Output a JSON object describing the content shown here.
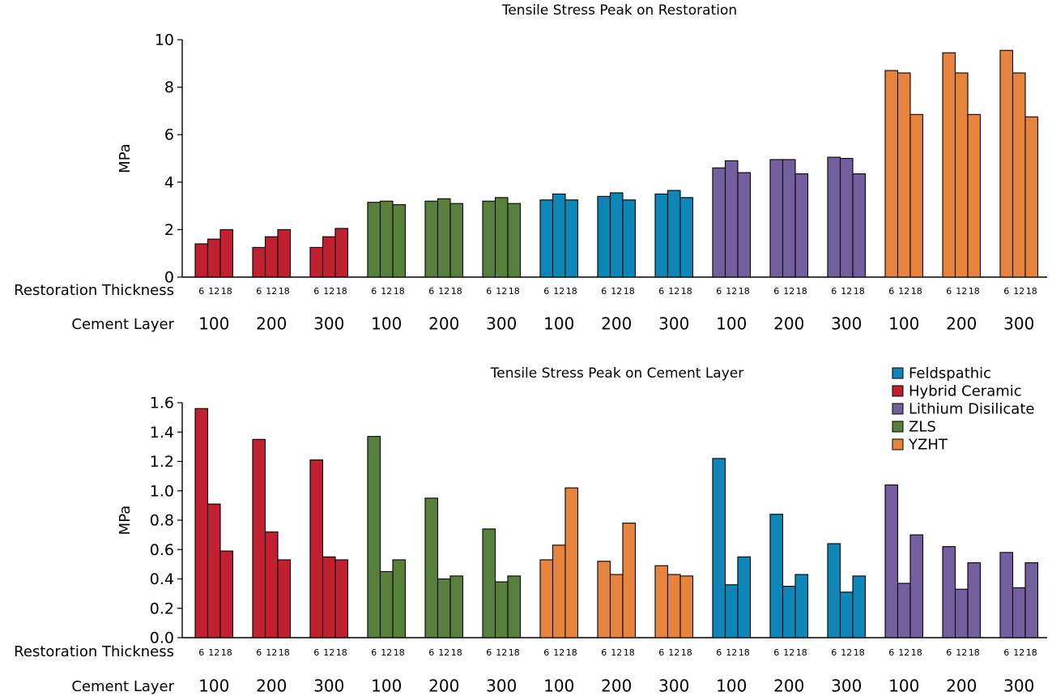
{
  "colors": {
    "Feldspathic": "#0e86b8",
    "Hybrid Ceramic": "#c0202f",
    "Lithium Disilicate": "#735f9e",
    "ZLS": "#58803c",
    "YZHT": "#e6843d"
  },
  "legend": [
    "Feldspathic",
    "Hybrid Ceramic",
    "Lithium Disilicate",
    "ZLS",
    "YZHT"
  ],
  "chart_data": [
    {
      "type": "bar",
      "title": "Tensile Stress Peak on Restoration",
      "ylabel": "MPa",
      "ylim": [
        0,
        10
      ],
      "yticks": [
        "0",
        "2",
        "4",
        "6",
        "8",
        "10"
      ],
      "row_labels": [
        "Restoration Thickness",
        "Cement Layer"
      ],
      "thickness_labels": [
        "6",
        "12",
        "18"
      ],
      "groups": [
        {
          "material": "Hybrid Ceramic",
          "cement": "100",
          "values": [
            1.4,
            1.6,
            2.0
          ]
        },
        {
          "material": "Hybrid Ceramic",
          "cement": "200",
          "values": [
            1.25,
            1.7,
            2.0
          ]
        },
        {
          "material": "Hybrid Ceramic",
          "cement": "300",
          "values": [
            1.25,
            1.7,
            2.05
          ]
        },
        {
          "material": "ZLS",
          "cement": "100",
          "values": [
            3.15,
            3.2,
            3.05
          ]
        },
        {
          "material": "ZLS",
          "cement": "200",
          "values": [
            3.2,
            3.3,
            3.1
          ]
        },
        {
          "material": "ZLS",
          "cement": "300",
          "values": [
            3.2,
            3.35,
            3.1
          ]
        },
        {
          "material": "Feldspathic",
          "cement": "100",
          "values": [
            3.25,
            3.5,
            3.25
          ]
        },
        {
          "material": "Feldspathic",
          "cement": "200",
          "values": [
            3.4,
            3.55,
            3.25
          ]
        },
        {
          "material": "Feldspathic",
          "cement": "300",
          "values": [
            3.5,
            3.65,
            3.35
          ]
        },
        {
          "material": "Lithium Disilicate",
          "cement": "100",
          "values": [
            4.6,
            4.9,
            4.4
          ]
        },
        {
          "material": "Lithium Disilicate",
          "cement": "200",
          "values": [
            4.95,
            4.95,
            4.35
          ]
        },
        {
          "material": "Lithium Disilicate",
          "cement": "300",
          "values": [
            5.05,
            5.0,
            4.35
          ]
        },
        {
          "material": "YZHT",
          "cement": "100",
          "values": [
            8.7,
            8.6,
            6.85
          ]
        },
        {
          "material": "YZHT",
          "cement": "200",
          "values": [
            9.45,
            8.6,
            6.85
          ]
        },
        {
          "material": "YZHT",
          "cement": "300",
          "values": [
            9.55,
            8.6,
            6.75
          ]
        }
      ]
    },
    {
      "type": "bar",
      "title": "Tensile Stress Peak on Cement Layer",
      "ylabel": "MPa",
      "ylim": [
        0,
        1.6
      ],
      "yticks": [
        "0.0",
        "0.2",
        "0.4",
        "0.6",
        "0.8",
        "1.0",
        "1.2",
        "1.4",
        "1.6"
      ],
      "row_labels": [
        "Restoration Thickness",
        "Cement Layer"
      ],
      "thickness_labels": [
        "6",
        "12",
        "18"
      ],
      "legend_position": "top-right",
      "groups": [
        {
          "material": "Hybrid Ceramic",
          "cement": "100",
          "values": [
            1.56,
            0.91,
            0.59
          ]
        },
        {
          "material": "Hybrid Ceramic",
          "cement": "200",
          "values": [
            1.35,
            0.72,
            0.53
          ]
        },
        {
          "material": "Hybrid Ceramic",
          "cement": "300",
          "values": [
            1.21,
            0.55,
            0.53
          ]
        },
        {
          "material": "ZLS",
          "cement": "100",
          "values": [
            1.37,
            0.45,
            0.53
          ]
        },
        {
          "material": "ZLS",
          "cement": "200",
          "values": [
            0.95,
            0.4,
            0.42
          ]
        },
        {
          "material": "ZLS",
          "cement": "300",
          "values": [
            0.74,
            0.38,
            0.42
          ]
        },
        {
          "material": "YZHT",
          "cement": "100",
          "values": [
            0.53,
            0.63,
            1.02
          ]
        },
        {
          "material": "YZHT",
          "cement": "200",
          "values": [
            0.52,
            0.43,
            0.78
          ]
        },
        {
          "material": "YZHT",
          "cement": "300",
          "values": [
            0.49,
            0.43,
            0.42
          ]
        },
        {
          "material": "Feldspathic",
          "cement": "100",
          "values": [
            1.22,
            0.36,
            0.55
          ]
        },
        {
          "material": "Feldspathic",
          "cement": "200",
          "values": [
            0.84,
            0.35,
            0.43
          ]
        },
        {
          "material": "Feldspathic",
          "cement": "300",
          "values": [
            0.64,
            0.31,
            0.42
          ]
        },
        {
          "material": "Lithium Disilicate",
          "cement": "100",
          "values": [
            1.04,
            0.37,
            0.7
          ]
        },
        {
          "material": "Lithium Disilicate",
          "cement": "200",
          "values": [
            0.62,
            0.33,
            0.51
          ]
        },
        {
          "material": "Lithium Disilicate",
          "cement": "300",
          "values": [
            0.58,
            0.34,
            0.51
          ]
        }
      ]
    }
  ]
}
